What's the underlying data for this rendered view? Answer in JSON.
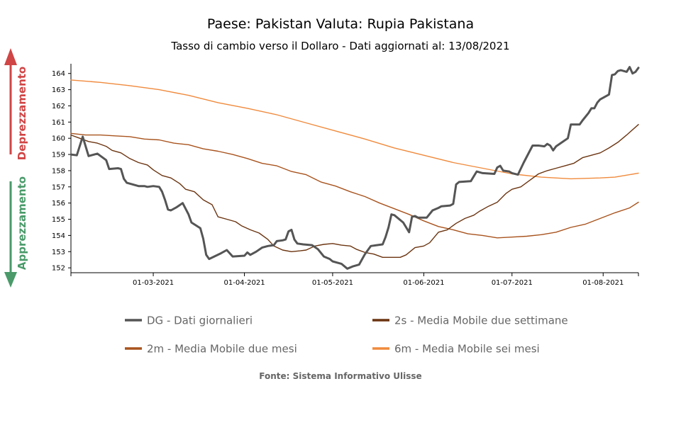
{
  "chart_data": {
    "type": "line",
    "title": "Paese: Pakistan Valuta: Rupia Pakistana",
    "subtitle": "Tasso di cambio verso il Dollaro - Dati aggiornati al: 13/08/2021",
    "source": "Fonte: Sistema Informativo Ulisse",
    "side_labels": {
      "up": "Deprezzamento",
      "down": "Apprezzamento",
      "up_color": "#d04545",
      "down_color": "#4a9a6a"
    },
    "x_range": [
      "2021-02-01",
      "2021-08-13"
    ],
    "ylim": [
      151.7,
      164.6
    ],
    "y_ticks": [
      152,
      153,
      154,
      155,
      156,
      157,
      158,
      159,
      160,
      161,
      162,
      163,
      164
    ],
    "x_ticks": [
      {
        "date": "2021-03-01",
        "label": "01-03-2021"
      },
      {
        "date": "2021-04-01",
        "label": "01-04-2021"
      },
      {
        "date": "2021-05-01",
        "label": "01-05-2021"
      },
      {
        "date": "2021-06-01",
        "label": "01-06-2021"
      },
      {
        "date": "2021-07-01",
        "label": "01-07-2021"
      },
      {
        "date": "2021-08-01",
        "label": "01-08-2021"
      }
    ],
    "legend_position": "bottom",
    "series": [
      {
        "name": "DG - Dati giornalieri",
        "color": "#555555",
        "points": [
          [
            "2021-02-01",
            159.0
          ],
          [
            "2021-02-03",
            158.95
          ],
          [
            "2021-02-05",
            160.1
          ],
          [
            "2021-02-07",
            158.9
          ],
          [
            "2021-02-10",
            159.05
          ],
          [
            "2021-02-13",
            158.65
          ],
          [
            "2021-02-14",
            158.1
          ],
          [
            "2021-02-17",
            158.15
          ],
          [
            "2021-02-18",
            158.1
          ],
          [
            "2021-02-19",
            157.5
          ],
          [
            "2021-02-20",
            157.25
          ],
          [
            "2021-02-24",
            157.05
          ],
          [
            "2021-02-26",
            157.05
          ],
          [
            "2021-02-27",
            157.0
          ],
          [
            "2021-03-01",
            157.05
          ],
          [
            "2021-03-03",
            157.0
          ],
          [
            "2021-03-04",
            156.7
          ],
          [
            "2021-03-05",
            156.2
          ],
          [
            "2021-03-06",
            155.6
          ],
          [
            "2021-03-07",
            155.55
          ],
          [
            "2021-03-09",
            155.75
          ],
          [
            "2021-03-11",
            156.0
          ],
          [
            "2021-03-13",
            155.3
          ],
          [
            "2021-03-14",
            154.8
          ],
          [
            "2021-03-17",
            154.45
          ],
          [
            "2021-03-18",
            153.8
          ],
          [
            "2021-03-19",
            152.8
          ],
          [
            "2021-03-20",
            152.55
          ],
          [
            "2021-03-24",
            152.9
          ],
          [
            "2021-03-26",
            153.1
          ],
          [
            "2021-03-28",
            152.7
          ],
          [
            "2021-04-01",
            152.75
          ],
          [
            "2021-04-02",
            152.95
          ],
          [
            "2021-04-03",
            152.8
          ],
          [
            "2021-04-05",
            153.0
          ],
          [
            "2021-04-07",
            153.25
          ],
          [
            "2021-04-09",
            153.35
          ],
          [
            "2021-04-11",
            153.4
          ],
          [
            "2021-04-12",
            153.65
          ],
          [
            "2021-04-14",
            153.7
          ],
          [
            "2021-04-15",
            153.75
          ],
          [
            "2021-04-16",
            154.25
          ],
          [
            "2021-04-17",
            154.35
          ],
          [
            "2021-04-18",
            153.75
          ],
          [
            "2021-04-19",
            153.5
          ],
          [
            "2021-04-21",
            153.45
          ],
          [
            "2021-04-24",
            153.4
          ],
          [
            "2021-04-26",
            153.15
          ],
          [
            "2021-04-28",
            152.7
          ],
          [
            "2021-04-30",
            152.55
          ],
          [
            "2021-05-01",
            152.4
          ],
          [
            "2021-05-03",
            152.3
          ],
          [
            "2021-05-04",
            152.25
          ],
          [
            "2021-05-06",
            151.95
          ],
          [
            "2021-05-08",
            152.1
          ],
          [
            "2021-05-10",
            152.2
          ],
          [
            "2021-05-12",
            152.85
          ],
          [
            "2021-05-14",
            153.35
          ],
          [
            "2021-05-16",
            153.4
          ],
          [
            "2021-05-18",
            153.45
          ],
          [
            "2021-05-19",
            153.9
          ],
          [
            "2021-05-20",
            154.5
          ],
          [
            "2021-05-21",
            155.3
          ],
          [
            "2021-05-22",
            155.25
          ],
          [
            "2021-05-25",
            154.8
          ],
          [
            "2021-05-27",
            154.2
          ],
          [
            "2021-05-28",
            155.15
          ],
          [
            "2021-05-29",
            155.2
          ],
          [
            "2021-05-30",
            155.1
          ],
          [
            "2021-06-02",
            155.1
          ],
          [
            "2021-06-04",
            155.55
          ],
          [
            "2021-06-06",
            155.7
          ],
          [
            "2021-06-07",
            155.8
          ],
          [
            "2021-06-10",
            155.85
          ],
          [
            "2021-06-11",
            155.95
          ],
          [
            "2021-06-12",
            157.15
          ],
          [
            "2021-06-13",
            157.3
          ],
          [
            "2021-06-17",
            157.35
          ],
          [
            "2021-06-19",
            157.95
          ],
          [
            "2021-06-21",
            157.85
          ],
          [
            "2021-06-25",
            157.8
          ],
          [
            "2021-06-26",
            158.2
          ],
          [
            "2021-06-27",
            158.3
          ],
          [
            "2021-06-28",
            158.0
          ],
          [
            "2021-06-30",
            157.95
          ],
          [
            "2021-07-01",
            157.85
          ],
          [
            "2021-07-03",
            157.75
          ],
          [
            "2021-07-05",
            158.5
          ],
          [
            "2021-07-07",
            159.2
          ],
          [
            "2021-07-08",
            159.55
          ],
          [
            "2021-07-10",
            159.55
          ],
          [
            "2021-07-12",
            159.5
          ],
          [
            "2021-07-13",
            159.65
          ],
          [
            "2021-07-14",
            159.55
          ],
          [
            "2021-07-15",
            159.25
          ],
          [
            "2021-07-16",
            159.5
          ],
          [
            "2021-07-18",
            159.75
          ],
          [
            "2021-07-20",
            160.0
          ],
          [
            "2021-07-21",
            160.85
          ],
          [
            "2021-07-22",
            160.85
          ],
          [
            "2021-07-24",
            160.85
          ],
          [
            "2021-07-25",
            161.1
          ],
          [
            "2021-07-27",
            161.55
          ],
          [
            "2021-07-28",
            161.85
          ],
          [
            "2021-07-29",
            161.85
          ],
          [
            "2021-07-30",
            162.2
          ],
          [
            "2021-07-31",
            162.4
          ],
          [
            "2021-08-03",
            162.7
          ],
          [
            "2021-08-04",
            163.9
          ],
          [
            "2021-08-05",
            163.95
          ],
          [
            "2021-08-06",
            164.15
          ],
          [
            "2021-08-07",
            164.2
          ],
          [
            "2021-08-09",
            164.1
          ],
          [
            "2021-08-10",
            164.4
          ],
          [
            "2021-08-11",
            164.0
          ],
          [
            "2021-08-12",
            164.1
          ],
          [
            "2021-08-13",
            164.35
          ]
        ]
      },
      {
        "name": "2s - Media Mobile due settimane",
        "color": "#6b3410",
        "points": [
          [
            "2021-02-01",
            160.2
          ],
          [
            "2021-02-04",
            160.0
          ],
          [
            "2021-02-07",
            159.8
          ],
          [
            "2021-02-10",
            159.7
          ],
          [
            "2021-02-13",
            159.5
          ],
          [
            "2021-02-15",
            159.25
          ],
          [
            "2021-02-18",
            159.1
          ],
          [
            "2021-02-21",
            158.75
          ],
          [
            "2021-02-24",
            158.5
          ],
          [
            "2021-02-27",
            158.35
          ],
          [
            "2021-03-01",
            158.05
          ],
          [
            "2021-03-04",
            157.7
          ],
          [
            "2021-03-07",
            157.55
          ],
          [
            "2021-03-10",
            157.2
          ],
          [
            "2021-03-12",
            156.85
          ],
          [
            "2021-03-15",
            156.7
          ],
          [
            "2021-03-18",
            156.2
          ],
          [
            "2021-03-21",
            155.9
          ],
          [
            "2021-03-23",
            155.15
          ],
          [
            "2021-03-26",
            155.0
          ],
          [
            "2021-03-29",
            154.85
          ],
          [
            "2021-03-31",
            154.6
          ],
          [
            "2021-04-03",
            154.35
          ],
          [
            "2021-04-06",
            154.15
          ],
          [
            "2021-04-09",
            153.75
          ],
          [
            "2021-04-11",
            153.35
          ],
          [
            "2021-04-14",
            153.1
          ],
          [
            "2021-04-17",
            153.0
          ],
          [
            "2021-04-20",
            153.05
          ],
          [
            "2021-04-22",
            153.1
          ],
          [
            "2021-04-25",
            153.35
          ],
          [
            "2021-04-28",
            153.45
          ],
          [
            "2021-05-01",
            153.5
          ],
          [
            "2021-05-04",
            153.4
          ],
          [
            "2021-05-07",
            153.35
          ],
          [
            "2021-05-09",
            153.15
          ],
          [
            "2021-05-12",
            152.95
          ],
          [
            "2021-05-15",
            152.85
          ],
          [
            "2021-05-18",
            152.65
          ],
          [
            "2021-05-21",
            152.65
          ],
          [
            "2021-05-24",
            152.65
          ],
          [
            "2021-05-26",
            152.8
          ],
          [
            "2021-05-29",
            153.25
          ],
          [
            "2021-06-01",
            153.35
          ],
          [
            "2021-06-03",
            153.55
          ],
          [
            "2021-06-06",
            154.2
          ],
          [
            "2021-06-09",
            154.35
          ],
          [
            "2021-06-12",
            154.75
          ],
          [
            "2021-06-15",
            155.05
          ],
          [
            "2021-06-18",
            155.25
          ],
          [
            "2021-06-20",
            155.5
          ],
          [
            "2021-06-23",
            155.8
          ],
          [
            "2021-06-26",
            156.05
          ],
          [
            "2021-06-29",
            156.6
          ],
          [
            "2021-07-01",
            156.85
          ],
          [
            "2021-07-04",
            157.0
          ],
          [
            "2021-07-07",
            157.4
          ],
          [
            "2021-07-10",
            157.8
          ],
          [
            "2021-07-13",
            158.0
          ],
          [
            "2021-07-16",
            158.15
          ],
          [
            "2021-07-19",
            158.3
          ],
          [
            "2021-07-22",
            158.45
          ],
          [
            "2021-07-25",
            158.8
          ],
          [
            "2021-07-28",
            158.95
          ],
          [
            "2021-07-31",
            159.1
          ],
          [
            "2021-08-03",
            159.4
          ],
          [
            "2021-08-06",
            159.75
          ],
          [
            "2021-08-09",
            160.2
          ],
          [
            "2021-08-13",
            160.85
          ]
        ]
      },
      {
        "name": "2m - Media Mobile due mesi",
        "color": "#a8531d",
        "points": [
          [
            "2021-02-01",
            160.3
          ],
          [
            "2021-02-06",
            160.2
          ],
          [
            "2021-02-11",
            160.2
          ],
          [
            "2021-02-16",
            160.15
          ],
          [
            "2021-02-21",
            160.1
          ],
          [
            "2021-02-26",
            159.95
          ],
          [
            "2021-03-03",
            159.9
          ],
          [
            "2021-03-08",
            159.7
          ],
          [
            "2021-03-13",
            159.6
          ],
          [
            "2021-03-18",
            159.35
          ],
          [
            "2021-03-23",
            159.2
          ],
          [
            "2021-03-28",
            159.0
          ],
          [
            "2021-04-02",
            158.75
          ],
          [
            "2021-04-07",
            158.45
          ],
          [
            "2021-04-12",
            158.3
          ],
          [
            "2021-04-17",
            157.95
          ],
          [
            "2021-04-22",
            157.75
          ],
          [
            "2021-04-27",
            157.3
          ],
          [
            "2021-05-02",
            157.05
          ],
          [
            "2021-05-07",
            156.7
          ],
          [
            "2021-05-12",
            156.4
          ],
          [
            "2021-05-17",
            156.0
          ],
          [
            "2021-05-22",
            155.65
          ],
          [
            "2021-05-27",
            155.3
          ],
          [
            "2021-06-01",
            154.9
          ],
          [
            "2021-06-06",
            154.55
          ],
          [
            "2021-06-11",
            154.35
          ],
          [
            "2021-06-16",
            154.1
          ],
          [
            "2021-06-21",
            154.0
          ],
          [
            "2021-06-26",
            153.85
          ],
          [
            "2021-07-01",
            153.9
          ],
          [
            "2021-07-06",
            153.95
          ],
          [
            "2021-07-11",
            154.05
          ],
          [
            "2021-07-16",
            154.2
          ],
          [
            "2021-07-21",
            154.5
          ],
          [
            "2021-07-26",
            154.7
          ],
          [
            "2021-07-31",
            155.05
          ],
          [
            "2021-08-05",
            155.4
          ],
          [
            "2021-08-10",
            155.7
          ],
          [
            "2021-08-13",
            156.05
          ]
        ]
      },
      {
        "name": "6m - Media Mobile sei mesi",
        "color": "#f08a3c",
        "points": [
          [
            "2021-02-01",
            163.6
          ],
          [
            "2021-02-11",
            163.45
          ],
          [
            "2021-02-21",
            163.25
          ],
          [
            "2021-03-03",
            163.0
          ],
          [
            "2021-03-13",
            162.65
          ],
          [
            "2021-03-23",
            162.2
          ],
          [
            "2021-04-02",
            161.85
          ],
          [
            "2021-04-12",
            161.45
          ],
          [
            "2021-04-22",
            160.95
          ],
          [
            "2021-05-02",
            160.45
          ],
          [
            "2021-05-12",
            159.95
          ],
          [
            "2021-05-22",
            159.4
          ],
          [
            "2021-06-01",
            158.95
          ],
          [
            "2021-06-11",
            158.5
          ],
          [
            "2021-06-21",
            158.15
          ],
          [
            "2021-07-01",
            157.8
          ],
          [
            "2021-07-11",
            157.6
          ],
          [
            "2021-07-21",
            157.5
          ],
          [
            "2021-07-31",
            157.55
          ],
          [
            "2021-08-05",
            157.6
          ],
          [
            "2021-08-10",
            157.75
          ],
          [
            "2021-08-13",
            157.85
          ]
        ]
      }
    ]
  }
}
